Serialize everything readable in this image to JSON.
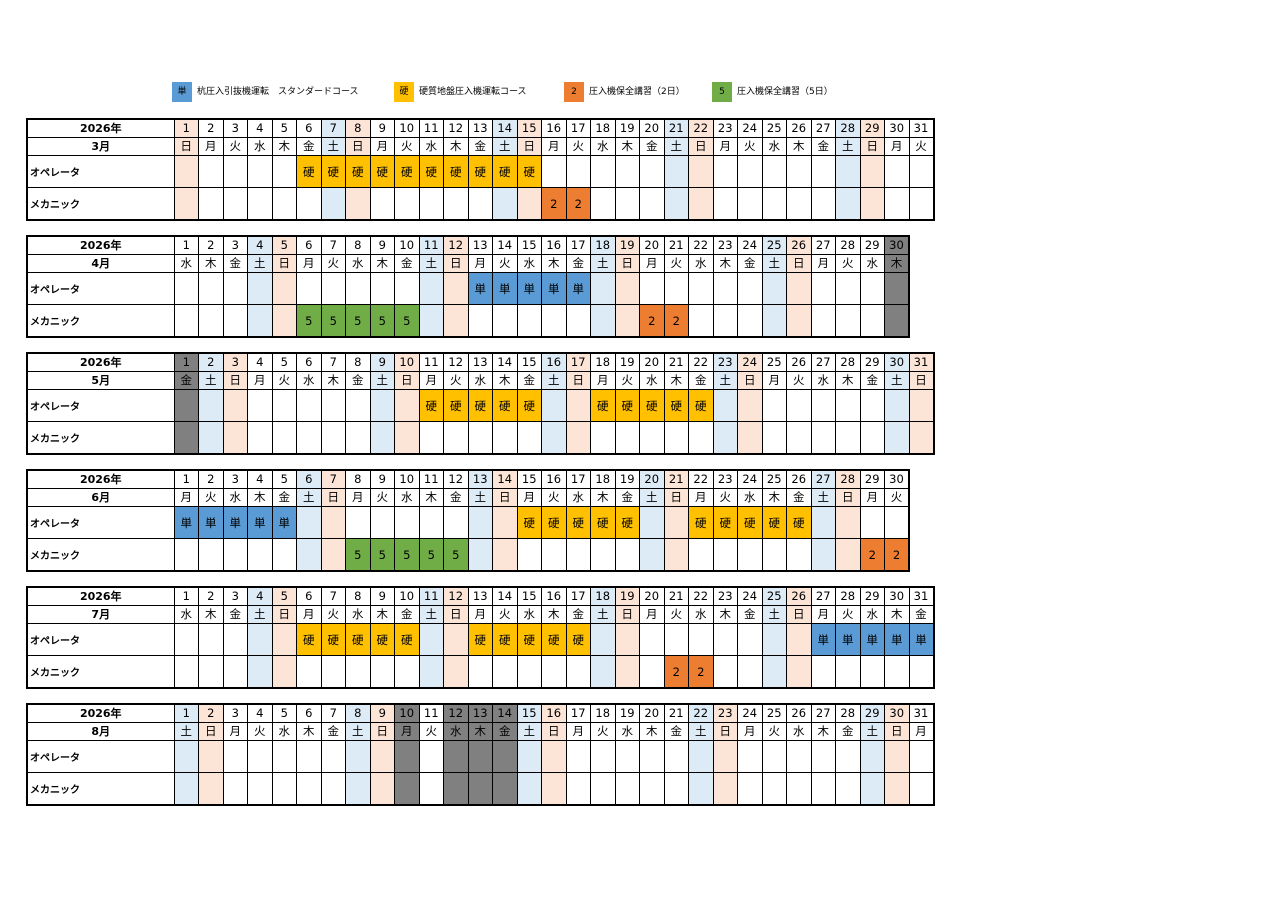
{
  "legend": [
    {
      "symbol": "単",
      "label": "杭圧入引抜機運転　スタンダードコース",
      "color": "#5b9bd5"
    },
    {
      "symbol": "硬",
      "label": "硬質地盤圧入機運転コース",
      "color": "#ffc000"
    },
    {
      "symbol": "2",
      "label": "圧入機保全講習（2日）",
      "color": "#ed7d31"
    },
    {
      "symbol": "5",
      "label": "圧入機保全講習（5日）",
      "color": "#70ad47"
    }
  ],
  "row_labels": {
    "operator": "オペレータ",
    "mechanic": "メカニック"
  },
  "months": [
    {
      "year": "2026年",
      "month": "3月",
      "days": 31,
      "weekdays": [
        "日",
        "月",
        "火",
        "水",
        "木",
        "金",
        "土",
        "日",
        "月",
        "火",
        "水",
        "木",
        "金",
        "土",
        "日",
        "月",
        "火",
        "水",
        "木",
        "金",
        "土",
        "日",
        "月",
        "火",
        "水",
        "木",
        "金",
        "土",
        "日",
        "月",
        "火"
      ],
      "closed_days": [],
      "operator": {
        "6": "硬",
        "7": "硬",
        "8": "硬",
        "9": "硬",
        "10": "硬",
        "11": "硬",
        "12": "硬",
        "13": "硬",
        "14": "硬",
        "15": "硬"
      },
      "mechanic": {
        "16": "2",
        "17": "2"
      }
    },
    {
      "year": "2026年",
      "month": "4月",
      "days": 30,
      "weekdays": [
        "水",
        "木",
        "金",
        "土",
        "日",
        "月",
        "火",
        "水",
        "木",
        "金",
        "土",
        "日",
        "月",
        "火",
        "水",
        "木",
        "金",
        "土",
        "日",
        "月",
        "火",
        "水",
        "木",
        "金",
        "土",
        "日",
        "月",
        "火",
        "水",
        "木"
      ],
      "closed_days": [
        30
      ],
      "operator": {
        "13": "単",
        "14": "単",
        "15": "単",
        "16": "単",
        "17": "単"
      },
      "mechanic": {
        "6": "5",
        "7": "5",
        "8": "5",
        "9": "5",
        "10": "5",
        "20": "2",
        "21": "2"
      }
    },
    {
      "year": "2026年",
      "month": "5月",
      "days": 31,
      "weekdays": [
        "金",
        "土",
        "日",
        "月",
        "火",
        "水",
        "木",
        "金",
        "土",
        "日",
        "月",
        "火",
        "水",
        "木",
        "金",
        "土",
        "日",
        "月",
        "火",
        "水",
        "木",
        "金",
        "土",
        "日",
        "月",
        "火",
        "水",
        "木",
        "金",
        "土",
        "日"
      ],
      "closed_days": [
        1
      ],
      "operator": {
        "11": "硬",
        "12": "硬",
        "13": "硬",
        "14": "硬",
        "15": "硬",
        "18": "硬",
        "19": "硬",
        "20": "硬",
        "21": "硬",
        "22": "硬"
      },
      "mechanic": {}
    },
    {
      "year": "2026年",
      "month": "6月",
      "days": 30,
      "weekdays": [
        "月",
        "火",
        "水",
        "木",
        "金",
        "土",
        "日",
        "月",
        "火",
        "水",
        "木",
        "金",
        "土",
        "日",
        "月",
        "火",
        "水",
        "木",
        "金",
        "土",
        "日",
        "月",
        "火",
        "水",
        "木",
        "金",
        "土",
        "日",
        "月",
        "火"
      ],
      "closed_days": [],
      "operator": {
        "1": "単",
        "2": "単",
        "3": "単",
        "4": "単",
        "5": "単",
        "15": "硬",
        "16": "硬",
        "17": "硬",
        "18": "硬",
        "19": "硬",
        "22": "硬",
        "23": "硬",
        "24": "硬",
        "25": "硬",
        "26": "硬"
      },
      "mechanic": {
        "8": "5",
        "9": "5",
        "10": "5",
        "11": "5",
        "12": "5",
        "29": "2",
        "30": "2"
      }
    },
    {
      "year": "2026年",
      "month": "7月",
      "days": 31,
      "weekdays": [
        "水",
        "木",
        "金",
        "土",
        "日",
        "月",
        "火",
        "水",
        "木",
        "金",
        "土",
        "日",
        "月",
        "火",
        "水",
        "木",
        "金",
        "土",
        "日",
        "月",
        "火",
        "水",
        "木",
        "金",
        "土",
        "日",
        "月",
        "火",
        "水",
        "木",
        "金"
      ],
      "closed_days": [],
      "operator": {
        "6": "硬",
        "7": "硬",
        "8": "硬",
        "9": "硬",
        "10": "硬",
        "13": "硬",
        "14": "硬",
        "15": "硬",
        "16": "硬",
        "17": "硬",
        "27": "単",
        "28": "単",
        "29": "単",
        "30": "単",
        "31": "単"
      },
      "mechanic": {
        "21": "2",
        "22": "2"
      }
    },
    {
      "year": "2026年",
      "month": "8月",
      "days": 31,
      "weekdays": [
        "土",
        "日",
        "月",
        "火",
        "水",
        "木",
        "金",
        "土",
        "日",
        "月",
        "火",
        "水",
        "木",
        "金",
        "土",
        "日",
        "月",
        "火",
        "水",
        "木",
        "金",
        "土",
        "日",
        "月",
        "火",
        "水",
        "木",
        "金",
        "土",
        "日",
        "月"
      ],
      "closed_days": [
        10,
        12,
        13,
        14
      ],
      "operator": {},
      "mechanic": {}
    }
  ]
}
